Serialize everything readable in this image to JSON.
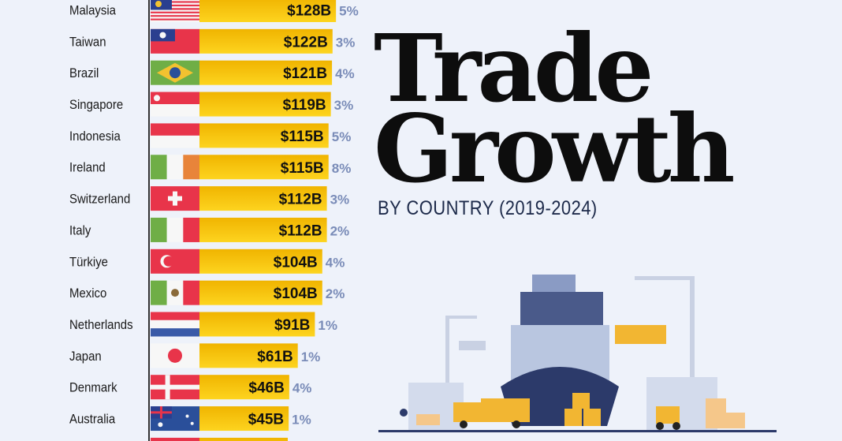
{
  "title_line1": "Trade",
  "title_line2": "Growth",
  "subtitle": "BY COUNTRY (2019-2024)",
  "colors": {
    "background": "#eef2fa",
    "bar_top": "#f0b400",
    "bar_bottom": "#fdd41f",
    "percent": "#7a8cb8",
    "label": "#1a1a1a"
  },
  "chart_data": {
    "type": "bar",
    "orientation": "horizontal",
    "categories": [
      "Malaysia",
      "Taiwan",
      "Brazil",
      "Singapore",
      "Indonesia",
      "Ireland",
      "Switzerland",
      "Italy",
      "Türkiye",
      "Mexico",
      "Netherlands",
      "Japan",
      "Denmark",
      "Australia"
    ],
    "series": [
      {
        "values": [
          128,
          122,
          121,
          119,
          115,
          115,
          112,
          112,
          104,
          104,
          91,
          61,
          46,
          45
        ]
      }
    ],
    "value_labels": [
      "$128B",
      "$122B",
      "$121B",
      "$119B",
      "$115B",
      "$115B",
      "$112B",
      "$112B",
      "$104B",
      "$104B",
      "$91B",
      "$61B",
      "$46B",
      "$45B"
    ],
    "growth_labels": [
      "5%",
      "3%",
      "4%",
      "3%",
      "5%",
      "8%",
      "3%",
      "2%",
      "4%",
      "2%",
      "1%",
      "1%",
      "4%",
      "1%"
    ],
    "flags": [
      "malaysia",
      "taiwan",
      "brazil",
      "singapore",
      "indonesia",
      "ireland",
      "switzerland",
      "italy",
      "turkiye",
      "mexico",
      "netherlands",
      "japan",
      "denmark",
      "australia"
    ],
    "unit": "USD billions",
    "grid": false,
    "legend": "none"
  }
}
